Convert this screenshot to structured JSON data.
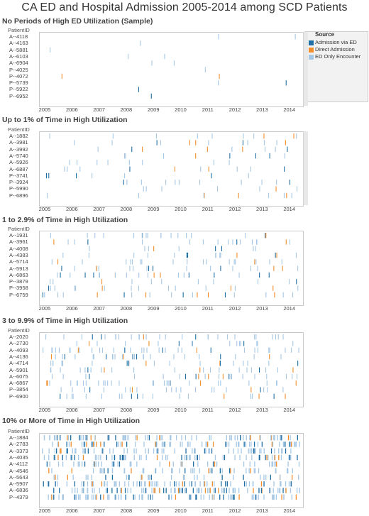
{
  "title": "CA ED and Hospital Admission 2005-2014 among SCD Patients",
  "colors": {
    "admission_via_ed": "#1f6fa5",
    "direct_admission": "#f28e2b",
    "ed_only": "#a6c8e5"
  },
  "legend": {
    "title": "Source",
    "items": [
      {
        "label": "Admission via ED",
        "color": "#1f6fa5"
      },
      {
        "label": "Direct Admission",
        "color": "#f28e2b"
      },
      {
        "label": "ED Only Encounter",
        "color": "#a6c8e5"
      }
    ]
  },
  "chart_data": {
    "type": "strip",
    "x_ticks": [
      "2005",
      "2006",
      "2007",
      "2008",
      "2009",
      "2010",
      "2011",
      "2012",
      "2013",
      "2014"
    ],
    "y_header": "PatientID",
    "panels": [
      {
        "title": "No Periods of High ED Utilization (Sample)",
        "patients": [
          "A--4118",
          "A--4163",
          "A--5881",
          "A--6103",
          "A--6904",
          "P--4025",
          "P--4072",
          "P--5739",
          "P--5922",
          "P--6952"
        ],
        "density": 0.4
      },
      {
        "title": "Up to 1% of Time in High Utilization",
        "patients": [
          "A--1882",
          "A--3981",
          "A--3992",
          "A--5740",
          "A--5926",
          "A--6887",
          "P--3741",
          "P--3924",
          "P--5990",
          "P--6896"
        ],
        "density": 0.9
      },
      {
        "title": "1 to 2.9% of Time in High Utilization",
        "patients": [
          "A--1931",
          "A--3961",
          "A--4008",
          "A--4383",
          "A--5714",
          "A--5913",
          "A--6863",
          "P--3879",
          "P--3958",
          "P--6759"
        ],
        "density": 1.6
      },
      {
        "title": "3 to 9.9% of Time in High Utilization",
        "patients": [
          "A--2020",
          "A--2730",
          "A--4093",
          "A--4136",
          "A--4714",
          "A--5901",
          "A--6075",
          "A--6867",
          "P--3854",
          "P--6900"
        ],
        "density": 2.6
      },
      {
        "title": "10% or More of Time in High Utilization",
        "patients": [
          "A--1884",
          "A--2783",
          "A--3373",
          "A--4035",
          "A--4112",
          "A--4546",
          "A--5643",
          "A--5907",
          "A--6836",
          "P--4379"
        ],
        "density": 6.5
      }
    ]
  }
}
